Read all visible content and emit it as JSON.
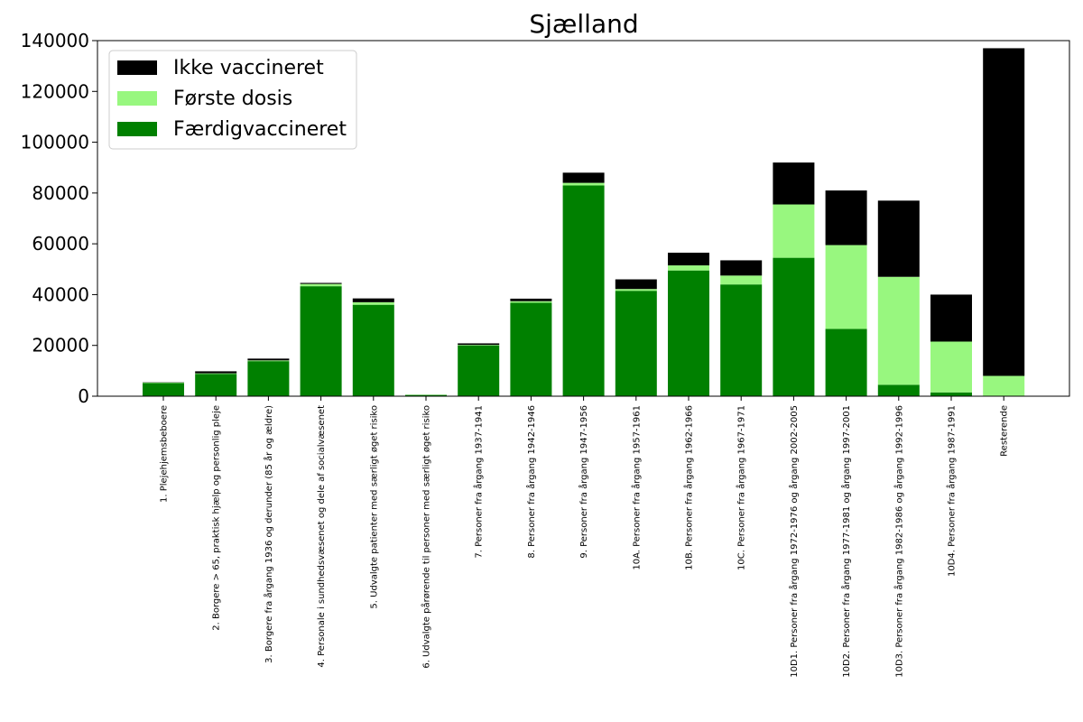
{
  "chart_data": {
    "type": "bar",
    "stacked": true,
    "title": "Sjælland",
    "xlabel": "",
    "ylabel": "",
    "ylim": [
      0,
      140000
    ],
    "yticks": [
      0,
      20000,
      40000,
      60000,
      80000,
      100000,
      120000,
      140000
    ],
    "ytick_labels": [
      "0",
      "20000",
      "40000",
      "60000",
      "80000",
      "100000",
      "120000",
      "140000"
    ],
    "grid": false,
    "legend_position": "top-left",
    "categories": [
      "1. Plejehjemsbeboere",
      "2. Borgere > 65, praktisk hjælp og personlig pleje",
      "3. Borgere fra årgang 1936 og derunder (85 år og ældre)",
      "4. Personale i sundhedsvæsenet og dele af socialvæsenet",
      "5. Udvalgte patienter med særligt øget risiko",
      "6. Udvalgte pårørende til personer med særligt øget risiko",
      "7. Personer fra årgang 1937-1941",
      "8. Personer fra årgang 1942-1946",
      "9. Personer fra årgang 1947-1956",
      "10A. Personer fra årgang 1957-1961",
      "10B. Personer fra årgang 1962-1966",
      "10C. Personer fra årgang 1967-1971",
      "10D1. Personer fra årgang 1972-1976 og årgang 2002-2005",
      "10D2. Personer fra årgang 1977-1981 og årgang 1997-2001",
      "10D3. Personer fra årgang 1982-1986 og årgang 1992-1996",
      "10D4. Personer fra årgang 1987-1991",
      "Resterende"
    ],
    "series": [
      {
        "name": "Færdigvaccineret",
        "color": "#008000",
        "values": [
          5200,
          8800,
          13800,
          43300,
          36000,
          500,
          20000,
          36800,
          83000,
          41500,
          49500,
          44000,
          54500,
          26500,
          4500,
          1500,
          0
        ]
      },
      {
        "name": "Første dosis",
        "color": "#98f77f",
        "values": [
          200,
          200,
          300,
          900,
          1000,
          100,
          200,
          600,
          1000,
          700,
          2000,
          3500,
          21000,
          33000,
          42500,
          20000,
          8000
        ]
      },
      {
        "name": "Ikke vaccineret",
        "color": "#000000",
        "values": [
          100,
          800,
          700,
          400,
          1500,
          0,
          600,
          1000,
          4000,
          3800,
          5000,
          6000,
          16500,
          21500,
          30000,
          18500,
          129000
        ]
      }
    ],
    "legend_order": [
      "Ikke vaccineret",
      "Første dosis",
      "Færdigvaccineret"
    ]
  }
}
